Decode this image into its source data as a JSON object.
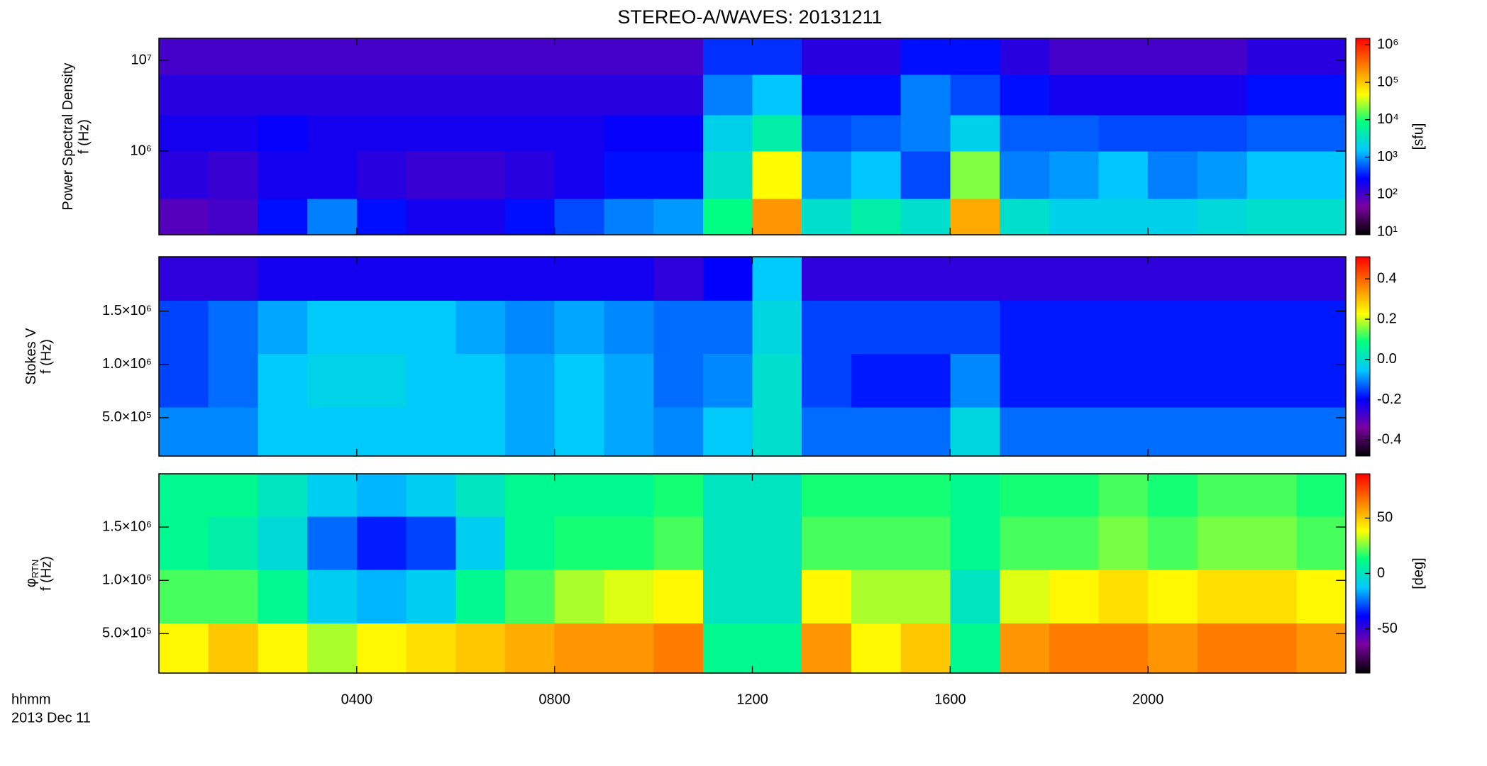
{
  "title": "STEREO-A/WAVES: 20131211",
  "x_label": "hhmm",
  "date_label": "2013 Dec 11",
  "colormap": [
    "#000000",
    "#7a00a0",
    "#0000ff",
    "#00c8ff",
    "#00ff80",
    "#ffff00",
    "#ff8000",
    "#ff0000"
  ],
  "chart_data": [
    {
      "type": "heatmap",
      "ylabel": "Power Spectral Density",
      "ylabel2": "f (Hz)",
      "zlabel": "[sfu]",
      "xlim": [
        0,
        24
      ],
      "ylog": true,
      "ylim": [
        120000,
        17500000
      ],
      "yticks": [
        {
          "value": 1000000,
          "label": "10⁶"
        },
        {
          "value": 10000000,
          "label": "10⁷"
        }
      ],
      "zlog": true,
      "zlim": [
        8.4,
        1500000
      ],
      "zticks": [
        {
          "value": 10,
          "label": "10¹"
        },
        {
          "value": 100,
          "label": "10²"
        },
        {
          "value": 1000,
          "label": "10³"
        },
        {
          "value": 10000,
          "label": "10⁴"
        },
        {
          "value": 100000,
          "label": "10⁵"
        },
        {
          "value": 1000000,
          "label": "10⁶"
        }
      ],
      "x_bins": [
        0,
        1,
        2,
        3,
        4,
        5,
        6,
        7,
        8,
        9,
        10,
        11,
        12,
        13,
        14,
        15,
        16,
        17,
        18,
        19,
        20,
        21,
        22,
        23,
        24
      ],
      "y_bins": [
        120000,
        300000,
        1000000,
        2500000,
        7000000,
        17500000
      ],
      "z": [
        [
          80,
          100,
          300,
          800,
          300,
          200,
          200,
          300,
          500,
          800,
          1000,
          8000,
          200000,
          3000,
          5000,
          3000,
          150000,
          3000,
          2000,
          2000,
          2000,
          2500,
          3000,
          3000
        ],
        [
          150,
          120,
          200,
          200,
          150,
          120,
          120,
          150,
          200,
          300,
          300,
          3000,
          50000,
          1000,
          1500,
          500,
          20000,
          800,
          1000,
          1500,
          800,
          1000,
          1500,
          1500
        ],
        [
          200,
          200,
          250,
          200,
          200,
          200,
          200,
          200,
          200,
          250,
          250,
          2000,
          5000,
          500,
          600,
          800,
          2000,
          600,
          600,
          500,
          500,
          500,
          600,
          600
        ],
        [
          150,
          150,
          150,
          150,
          150,
          150,
          150,
          150,
          150,
          150,
          150,
          800,
          1500,
          300,
          300,
          800,
          500,
          300,
          200,
          200,
          200,
          200,
          300,
          300
        ],
        [
          100,
          100,
          100,
          100,
          100,
          100,
          100,
          100,
          100,
          100,
          100,
          400,
          400,
          150,
          150,
          300,
          300,
          150,
          100,
          100,
          100,
          100,
          150,
          150
        ]
      ]
    },
    {
      "type": "heatmap",
      "ylabel": "Stokes V",
      "ylabel2": "f (Hz)",
      "xlim": [
        0,
        24
      ],
      "ylim": [
        140000,
        2010000
      ],
      "yticks": [
        {
          "value": 500000,
          "label": "5.0×10⁵"
        },
        {
          "value": 1000000,
          "label": "1.0×10⁶"
        },
        {
          "value": 1500000,
          "label": "1.5×10⁶"
        }
      ],
      "zlim": [
        -0.48,
        0.51
      ],
      "zticks": [
        -0.4,
        -0.2,
        {
          "value": 0,
          "label": "0.0"
        },
        0.2,
        0.4
      ],
      "x_bins": [
        0,
        1,
        2,
        3,
        4,
        5,
        6,
        7,
        8,
        9,
        10,
        11,
        12,
        13,
        14,
        15,
        16,
        17,
        18,
        19,
        20,
        21,
        22,
        23,
        24
      ],
      "y_bins": [
        140000,
        600000,
        1100000,
        1600000,
        2010000
      ],
      "z": [
        [
          -0.1,
          -0.1,
          -0.05,
          -0.05,
          -0.05,
          -0.05,
          -0.05,
          -0.08,
          -0.05,
          -0.08,
          -0.1,
          -0.05,
          0,
          -0.12,
          -0.12,
          -0.12,
          -0.02,
          -0.12,
          -0.12,
          -0.12,
          -0.12,
          -0.12,
          -0.12,
          -0.12
        ],
        [
          -0.15,
          -0.12,
          -0.05,
          -0.03,
          -0.03,
          -0.05,
          -0.05,
          -0.08,
          -0.05,
          -0.08,
          -0.12,
          -0.1,
          0,
          -0.15,
          -0.18,
          -0.18,
          -0.1,
          -0.18,
          -0.18,
          -0.18,
          -0.18,
          -0.18,
          -0.18,
          -0.18
        ],
        [
          -0.15,
          -0.12,
          -0.08,
          -0.05,
          -0.05,
          -0.05,
          -0.08,
          -0.1,
          -0.08,
          -0.1,
          -0.12,
          -0.12,
          -0.02,
          -0.15,
          -0.15,
          -0.15,
          -0.15,
          -0.18,
          -0.18,
          -0.18,
          -0.18,
          -0.18,
          -0.18,
          -0.18
        ],
        [
          -0.25,
          -0.25,
          -0.22,
          -0.22,
          -0.22,
          -0.22,
          -0.22,
          -0.22,
          -0.22,
          -0.22,
          -0.25,
          -0.2,
          -0.05,
          -0.25,
          -0.25,
          -0.25,
          -0.25,
          -0.25,
          -0.25,
          -0.25,
          -0.25,
          -0.25,
          -0.25,
          -0.25
        ]
      ]
    },
    {
      "type": "heatmap",
      "ylabel": "φ",
      "ylabel_sub": "RTN",
      "ylabel2": "f (Hz)",
      "zlabel": "[deg]",
      "xlim": [
        0,
        24
      ],
      "ylim": [
        130000,
        2000000
      ],
      "xticks": [
        {
          "value": 4,
          "label": "0400"
        },
        {
          "value": 8,
          "label": "0800"
        },
        {
          "value": 12,
          "label": "1200"
        },
        {
          "value": 16,
          "label": "1600"
        },
        {
          "value": 20,
          "label": "2000"
        }
      ],
      "yticks": [
        {
          "value": 500000,
          "label": "5.0×10⁵"
        },
        {
          "value": 1000000,
          "label": "1.0×10⁶"
        },
        {
          "value": 1500000,
          "label": "1.5×10⁶"
        }
      ],
      "zlim": [
        -90,
        90
      ],
      "zticks": [
        -50,
        0,
        50
      ],
      "x_bins": [
        0,
        1,
        2,
        3,
        4,
        5,
        6,
        7,
        8,
        9,
        10,
        11,
        12,
        13,
        14,
        15,
        16,
        17,
        18,
        19,
        20,
        21,
        22,
        23,
        24
      ],
      "y_bins": [
        130000,
        600000,
        1100000,
        1600000,
        2000000
      ],
      "z": [
        [
          40,
          50,
          40,
          30,
          40,
          45,
          50,
          55,
          60,
          60,
          65,
          10,
          10,
          60,
          40,
          50,
          10,
          60,
          65,
          65,
          60,
          65,
          65,
          60
        ],
        [
          20,
          20,
          10,
          -10,
          -15,
          -10,
          10,
          20,
          30,
          35,
          40,
          0,
          0,
          40,
          30,
          30,
          0,
          35,
          40,
          45,
          40,
          45,
          45,
          40
        ],
        [
          10,
          5,
          -5,
          -25,
          -35,
          -30,
          -10,
          10,
          15,
          15,
          20,
          0,
          0,
          20,
          20,
          20,
          10,
          20,
          20,
          25,
          20,
          25,
          25,
          20
        ],
        [
          10,
          10,
          0,
          -10,
          -15,
          -10,
          0,
          10,
          10,
          10,
          15,
          0,
          0,
          15,
          15,
          15,
          10,
          15,
          15,
          20,
          15,
          20,
          20,
          15
        ]
      ]
    }
  ]
}
